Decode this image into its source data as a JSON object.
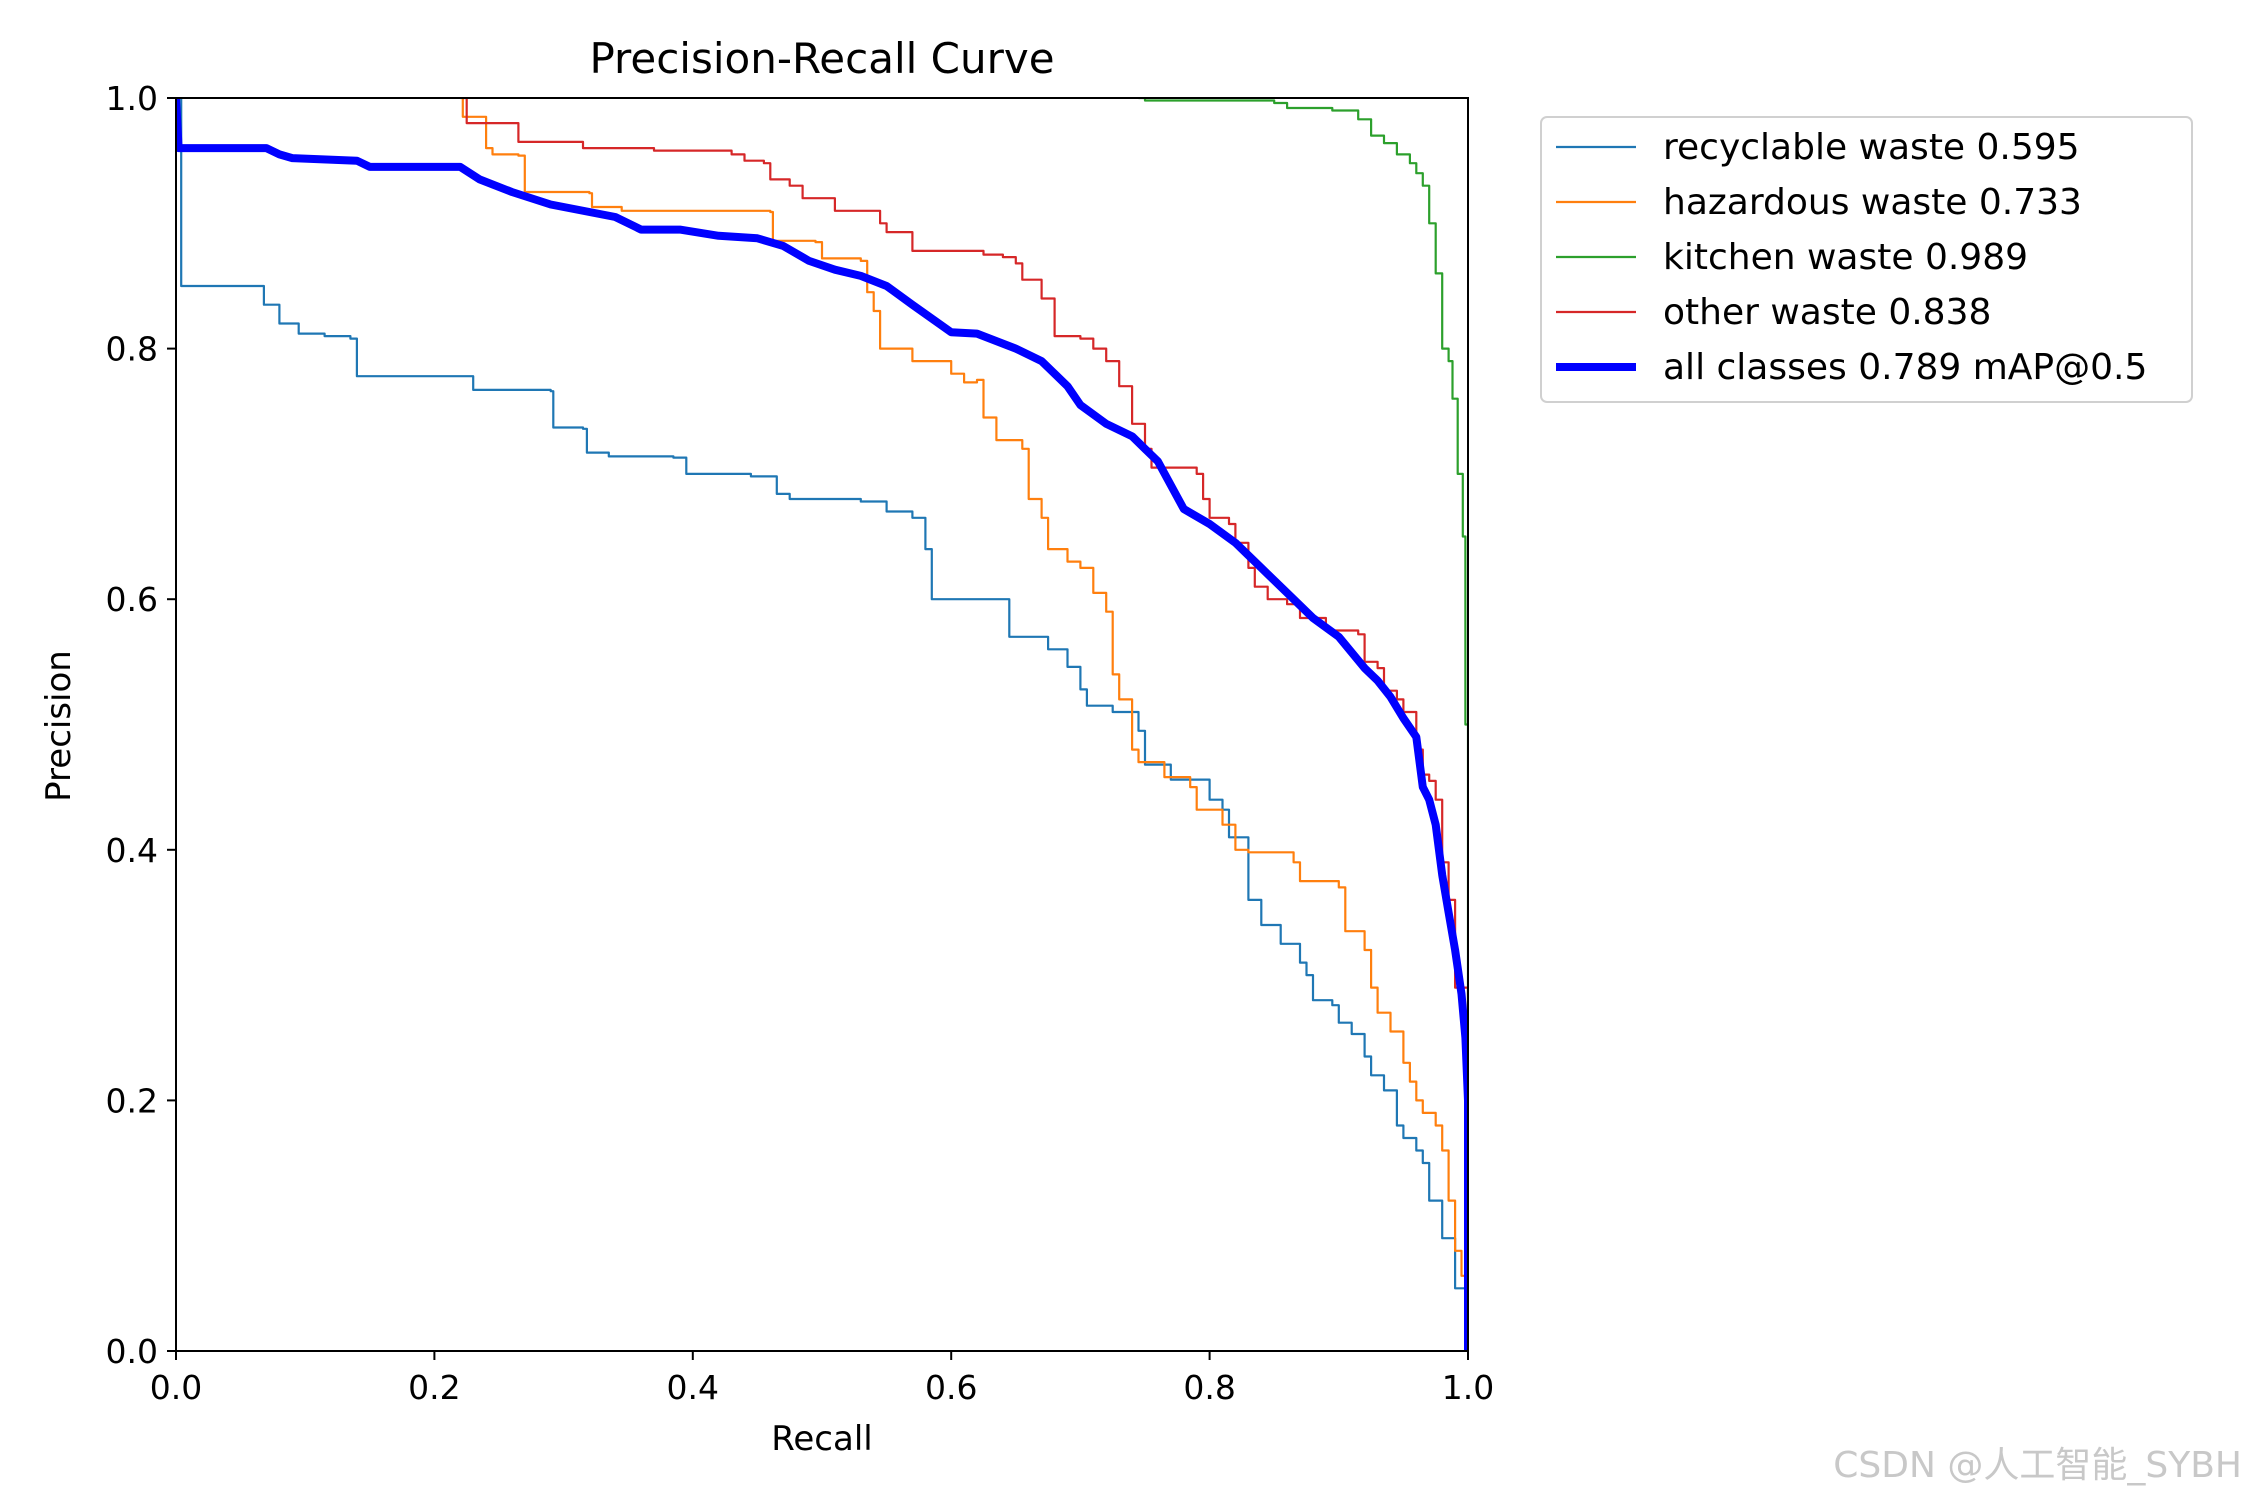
{
  "chart_data": {
    "type": "line",
    "title": "Precision-Recall Curve",
    "xlabel": "Recall",
    "ylabel": "Precision",
    "xlim": [
      0,
      1
    ],
    "ylim": [
      0,
      1
    ],
    "xticks": [
      "0.0",
      "0.2",
      "0.4",
      "0.6",
      "0.8",
      "1.0"
    ],
    "yticks": [
      "0.0",
      "0.2",
      "0.4",
      "0.6",
      "0.8",
      "1.0"
    ],
    "legend_position": "outside-top-right",
    "series": [
      {
        "name": "recyclable waste 0.595",
        "color": "#1f77b4",
        "width": "thin",
        "step": true,
        "points": [
          [
            0,
            1.0
          ],
          [
            0.003,
            1.0
          ],
          [
            0.004,
            0.85
          ],
          [
            0.065,
            0.85
          ],
          [
            0.068,
            0.835
          ],
          [
            0.08,
            0.82
          ],
          [
            0.095,
            0.812
          ],
          [
            0.115,
            0.81
          ],
          [
            0.135,
            0.808
          ],
          [
            0.14,
            0.778
          ],
          [
            0.225,
            0.778
          ],
          [
            0.23,
            0.767
          ],
          [
            0.29,
            0.766
          ],
          [
            0.292,
            0.737
          ],
          [
            0.315,
            0.736
          ],
          [
            0.318,
            0.717
          ],
          [
            0.335,
            0.714
          ],
          [
            0.385,
            0.713
          ],
          [
            0.395,
            0.7
          ],
          [
            0.445,
            0.698
          ],
          [
            0.465,
            0.684
          ],
          [
            0.475,
            0.68
          ],
          [
            0.53,
            0.678
          ],
          [
            0.55,
            0.67
          ],
          [
            0.57,
            0.665
          ],
          [
            0.58,
            0.64
          ],
          [
            0.585,
            0.6
          ],
          [
            0.64,
            0.6
          ],
          [
            0.645,
            0.57
          ],
          [
            0.675,
            0.56
          ],
          [
            0.69,
            0.546
          ],
          [
            0.7,
            0.528
          ],
          [
            0.705,
            0.515
          ],
          [
            0.725,
            0.51
          ],
          [
            0.745,
            0.495
          ],
          [
            0.75,
            0.468
          ],
          [
            0.77,
            0.456
          ],
          [
            0.8,
            0.454
          ],
          [
            0.8,
            0.44
          ],
          [
            0.81,
            0.432
          ],
          [
            0.815,
            0.41
          ],
          [
            0.83,
            0.36
          ],
          [
            0.84,
            0.34
          ],
          [
            0.855,
            0.325
          ],
          [
            0.87,
            0.31
          ],
          [
            0.875,
            0.3
          ],
          [
            0.88,
            0.28
          ],
          [
            0.895,
            0.276
          ],
          [
            0.9,
            0.262
          ],
          [
            0.91,
            0.253
          ],
          [
            0.92,
            0.235
          ],
          [
            0.925,
            0.22
          ],
          [
            0.935,
            0.208
          ],
          [
            0.945,
            0.18
          ],
          [
            0.95,
            0.17
          ],
          [
            0.96,
            0.16
          ],
          [
            0.965,
            0.15
          ],
          [
            0.97,
            0.12
          ],
          [
            0.98,
            0.09
          ],
          [
            0.99,
            0.05
          ],
          [
            1.0,
            0.0
          ]
        ]
      },
      {
        "name": "hazardous waste 0.733",
        "color": "#ff7f0e",
        "width": "thin",
        "step": true,
        "points": [
          [
            0.22,
            1.0
          ],
          [
            0.222,
            0.985
          ],
          [
            0.24,
            0.96
          ],
          [
            0.245,
            0.955
          ],
          [
            0.265,
            0.954
          ],
          [
            0.27,
            0.925
          ],
          [
            0.32,
            0.924
          ],
          [
            0.322,
            0.913
          ],
          [
            0.345,
            0.91
          ],
          [
            0.46,
            0.909
          ],
          [
            0.462,
            0.886
          ],
          [
            0.495,
            0.885
          ],
          [
            0.5,
            0.872
          ],
          [
            0.53,
            0.87
          ],
          [
            0.535,
            0.845
          ],
          [
            0.54,
            0.83
          ],
          [
            0.545,
            0.8
          ],
          [
            0.57,
            0.79
          ],
          [
            0.6,
            0.78
          ],
          [
            0.61,
            0.773
          ],
          [
            0.62,
            0.775
          ],
          [
            0.625,
            0.745
          ],
          [
            0.635,
            0.727
          ],
          [
            0.655,
            0.72
          ],
          [
            0.66,
            0.68
          ],
          [
            0.67,
            0.665
          ],
          [
            0.675,
            0.64
          ],
          [
            0.69,
            0.63
          ],
          [
            0.7,
            0.625
          ],
          [
            0.71,
            0.605
          ],
          [
            0.72,
            0.59
          ],
          [
            0.725,
            0.54
          ],
          [
            0.73,
            0.52
          ],
          [
            0.74,
            0.48
          ],
          [
            0.745,
            0.47
          ],
          [
            0.765,
            0.458
          ],
          [
            0.785,
            0.45
          ],
          [
            0.79,
            0.432
          ],
          [
            0.81,
            0.42
          ],
          [
            0.82,
            0.4
          ],
          [
            0.83,
            0.398
          ],
          [
            0.865,
            0.39
          ],
          [
            0.87,
            0.375
          ],
          [
            0.9,
            0.37
          ],
          [
            0.905,
            0.335
          ],
          [
            0.92,
            0.32
          ],
          [
            0.925,
            0.29
          ],
          [
            0.93,
            0.27
          ],
          [
            0.94,
            0.255
          ],
          [
            0.95,
            0.23
          ],
          [
            0.955,
            0.215
          ],
          [
            0.96,
            0.2
          ],
          [
            0.965,
            0.19
          ],
          [
            0.975,
            0.18
          ],
          [
            0.98,
            0.16
          ],
          [
            0.985,
            0.12
          ],
          [
            0.99,
            0.08
          ],
          [
            0.995,
            0.06
          ],
          [
            1.0,
            0.0
          ]
        ]
      },
      {
        "name": "kitchen waste 0.989",
        "color": "#2ca02c",
        "width": "thin",
        "step": true,
        "points": [
          [
            0.745,
            1.0
          ],
          [
            0.75,
            0.998
          ],
          [
            0.85,
            0.996
          ],
          [
            0.86,
            0.992
          ],
          [
            0.895,
            0.99
          ],
          [
            0.915,
            0.983
          ],
          [
            0.925,
            0.97
          ],
          [
            0.935,
            0.964
          ],
          [
            0.945,
            0.955
          ],
          [
            0.955,
            0.948
          ],
          [
            0.96,
            0.94
          ],
          [
            0.965,
            0.93
          ],
          [
            0.97,
            0.9
          ],
          [
            0.975,
            0.86
          ],
          [
            0.98,
            0.8
          ],
          [
            0.985,
            0.79
          ],
          [
            0.988,
            0.76
          ],
          [
            0.992,
            0.7
          ],
          [
            0.996,
            0.65
          ],
          [
            0.998,
            0.5
          ],
          [
            1.0,
            0.0
          ]
        ]
      },
      {
        "name": "other waste 0.838",
        "color": "#d62728",
        "width": "thin",
        "step": true,
        "points": [
          [
            0.222,
            1.0
          ],
          [
            0.225,
            0.98
          ],
          [
            0.255,
            0.98
          ],
          [
            0.265,
            0.965
          ],
          [
            0.31,
            0.965
          ],
          [
            0.315,
            0.96
          ],
          [
            0.37,
            0.958
          ],
          [
            0.43,
            0.955
          ],
          [
            0.44,
            0.95
          ],
          [
            0.455,
            0.948
          ],
          [
            0.46,
            0.935
          ],
          [
            0.475,
            0.93
          ],
          [
            0.485,
            0.92
          ],
          [
            0.51,
            0.91
          ],
          [
            0.545,
            0.9
          ],
          [
            0.55,
            0.893
          ],
          [
            0.57,
            0.878
          ],
          [
            0.625,
            0.875
          ],
          [
            0.64,
            0.873
          ],
          [
            0.65,
            0.868
          ],
          [
            0.655,
            0.855
          ],
          [
            0.67,
            0.84
          ],
          [
            0.68,
            0.81
          ],
          [
            0.7,
            0.808
          ],
          [
            0.71,
            0.8
          ],
          [
            0.72,
            0.79
          ],
          [
            0.73,
            0.77
          ],
          [
            0.74,
            0.74
          ],
          [
            0.75,
            0.72
          ],
          [
            0.755,
            0.705
          ],
          [
            0.79,
            0.7
          ],
          [
            0.795,
            0.68
          ],
          [
            0.8,
            0.665
          ],
          [
            0.815,
            0.66
          ],
          [
            0.82,
            0.645
          ],
          [
            0.83,
            0.625
          ],
          [
            0.835,
            0.61
          ],
          [
            0.845,
            0.6
          ],
          [
            0.86,
            0.596
          ],
          [
            0.87,
            0.585
          ],
          [
            0.89,
            0.575
          ],
          [
            0.915,
            0.572
          ],
          [
            0.92,
            0.55
          ],
          [
            0.93,
            0.545
          ],
          [
            0.935,
            0.527
          ],
          [
            0.945,
            0.52
          ],
          [
            0.95,
            0.51
          ],
          [
            0.96,
            0.48
          ],
          [
            0.965,
            0.46
          ],
          [
            0.97,
            0.455
          ],
          [
            0.975,
            0.44
          ],
          [
            0.98,
            0.39
          ],
          [
            0.985,
            0.36
          ],
          [
            0.99,
            0.29
          ],
          [
            1.0,
            0.285
          ],
          [
            1.0,
            0.23
          ],
          [
            1.0,
            0.0
          ]
        ]
      },
      {
        "name": "all classes 0.789 mAP@0.5",
        "color": "#0000ff",
        "width": "thick",
        "step": false,
        "points": [
          [
            0,
            1.0
          ],
          [
            0.002,
            0.96
          ],
          [
            0.07,
            0.96
          ],
          [
            0.08,
            0.955
          ],
          [
            0.09,
            0.952
          ],
          [
            0.14,
            0.95
          ],
          [
            0.15,
            0.945
          ],
          [
            0.22,
            0.945
          ],
          [
            0.235,
            0.935
          ],
          [
            0.26,
            0.925
          ],
          [
            0.29,
            0.915
          ],
          [
            0.34,
            0.905
          ],
          [
            0.36,
            0.895
          ],
          [
            0.39,
            0.895
          ],
          [
            0.42,
            0.89
          ],
          [
            0.45,
            0.888
          ],
          [
            0.47,
            0.882
          ],
          [
            0.49,
            0.87
          ],
          [
            0.51,
            0.863
          ],
          [
            0.53,
            0.858
          ],
          [
            0.55,
            0.85
          ],
          [
            0.57,
            0.835
          ],
          [
            0.6,
            0.813
          ],
          [
            0.62,
            0.812
          ],
          [
            0.65,
            0.8
          ],
          [
            0.67,
            0.79
          ],
          [
            0.69,
            0.77
          ],
          [
            0.7,
            0.755
          ],
          [
            0.72,
            0.74
          ],
          [
            0.74,
            0.73
          ],
          [
            0.76,
            0.71
          ],
          [
            0.78,
            0.672
          ],
          [
            0.8,
            0.66
          ],
          [
            0.82,
            0.645
          ],
          [
            0.84,
            0.625
          ],
          [
            0.86,
            0.605
          ],
          [
            0.88,
            0.585
          ],
          [
            0.9,
            0.57
          ],
          [
            0.92,
            0.545
          ],
          [
            0.93,
            0.535
          ],
          [
            0.94,
            0.522
          ],
          [
            0.95,
            0.505
          ],
          [
            0.96,
            0.49
          ],
          [
            0.965,
            0.45
          ],
          [
            0.97,
            0.44
          ],
          [
            0.975,
            0.42
          ],
          [
            0.98,
            0.38
          ],
          [
            0.985,
            0.35
          ],
          [
            0.99,
            0.32
          ],
          [
            0.995,
            0.285
          ],
          [
            0.998,
            0.25
          ],
          [
            1.0,
            0.2
          ],
          [
            1.0,
            0.0
          ]
        ]
      }
    ]
  },
  "watermark": "CSDN @人工智能_SYBH"
}
